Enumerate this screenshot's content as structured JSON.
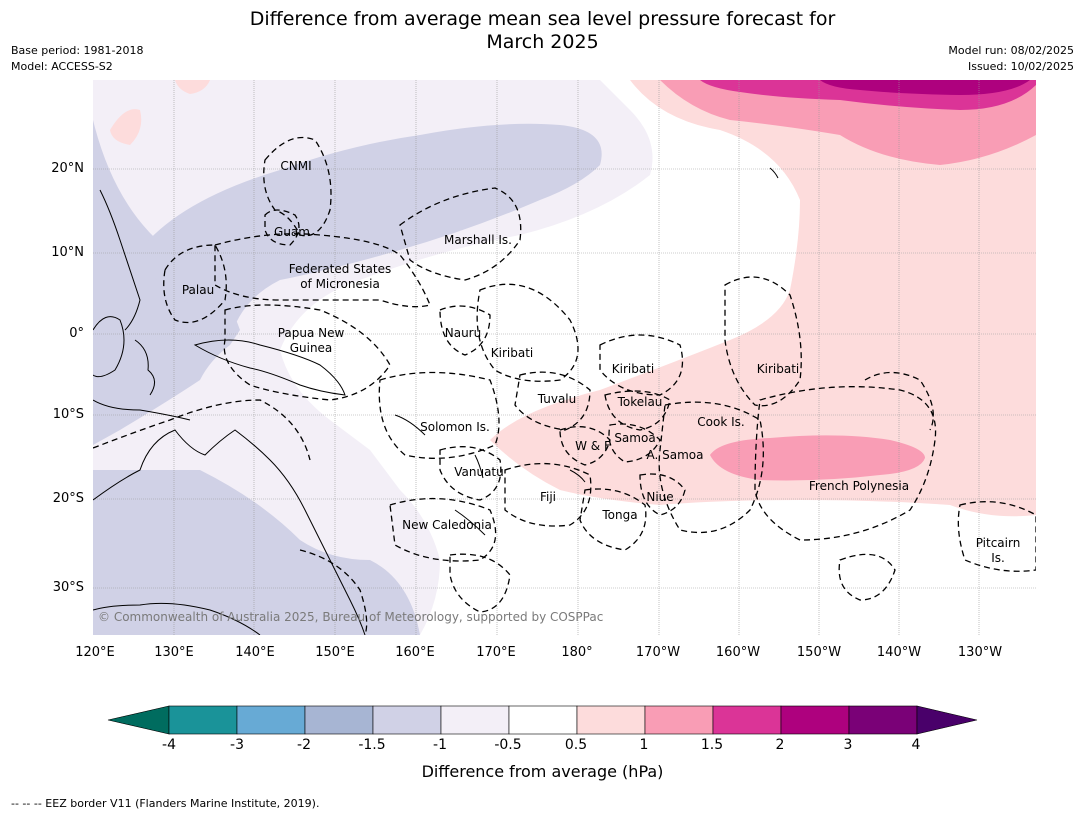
{
  "header": {
    "title_line1": "Difference from average mean sea level pressure forecast for",
    "title_line2": "March 2025",
    "base_period": "Base period: 1981-2018",
    "model": "Model: ACCESS-S2",
    "model_run": "Model run: 08/02/2025",
    "issued": "Issued: 10/02/2025"
  },
  "axes": {
    "lat_labels": [
      "20°N",
      "10°N",
      "0°",
      "10°S",
      "20°S",
      "30°S"
    ],
    "lon_labels": [
      "120°E",
      "130°E",
      "140°E",
      "150°E",
      "160°E",
      "170°E",
      "180°",
      "170°W",
      "160°W",
      "150°W",
      "140°W",
      "130°W"
    ]
  },
  "map_labels": {
    "cnmi": "CNMI",
    "guam": "Guam",
    "marshall": "Marshall Is.",
    "fsm_1": "Federated States",
    "fsm_2": "of Micronesia",
    "palau": "Palau",
    "png_1": "Papua New",
    "png_2": "Guinea",
    "nauru": "Nauru",
    "kiribati_w": "Kiribati",
    "kiribati_c": "Kiribati",
    "kiribati_e": "Kiribati",
    "tuvalu": "Tuvalu",
    "tokelau": "Tokelau",
    "solomon": "Solomon Is.",
    "wf": "W & F",
    "samoa": "Samoa",
    "asamoa": "A. Samoa",
    "cook": "Cook Is.",
    "vanuatu": "Vanuatu",
    "fiji": "Fiji",
    "niue": "Niue",
    "tonga": "Tonga",
    "newcal": "New Caledonia",
    "frpoly": "French Polynesia",
    "pitcairn_1": "Pitcairn",
    "pitcairn_2": "Is."
  },
  "copyright": "© Commonwealth of Australia 2025, Bureau of Meteorology, supported by COSPPac",
  "colorbar": {
    "title": "Difference from average (hPa)",
    "ticks": [
      "-4",
      "-3",
      "-2",
      "-1.5",
      "-1",
      "-0.5",
      "0.5",
      "1",
      "1.5",
      "2",
      "3",
      "4"
    ],
    "colors": [
      "#1a9399",
      "#67aad5",
      "#a7b5d3",
      "#d0d1e6",
      "#f3eff7",
      "#ffffff",
      "#fddcdc",
      "#f99db5",
      "#db3497",
      "#ae017e",
      "#7a0177"
    ],
    "under_color": "#006c5f",
    "over_color": "#49006a"
  },
  "footer": "--  --  -- EEZ border V11 (Flanders Marine Institute, 2019).",
  "colors": {
    "c_m1": "#f3eff7",
    "c_m15": "#d0d1e6",
    "c_m2": "#a7b5d3",
    "c_p05": "#fddcdc",
    "c_p1": "#f99db5",
    "c_p15": "#db3497",
    "c_p2": "#ae017e"
  }
}
